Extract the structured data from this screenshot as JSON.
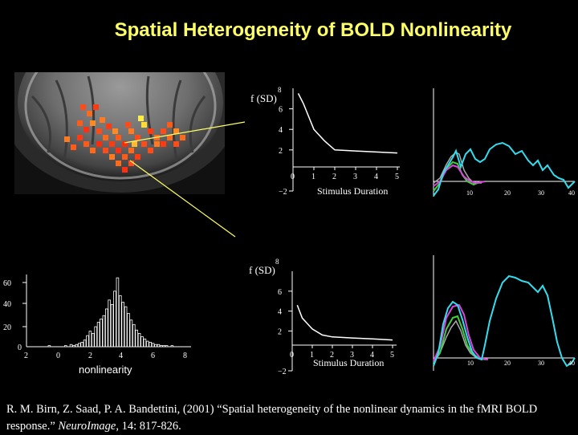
{
  "title": "Spatial Heterogeneity of BOLD Nonlinearity",
  "colors": {
    "background": "#000000",
    "title": "#ffff66",
    "nonlinearity_curve": "#ffffff",
    "pointer_line": "#ffff66",
    "trace_cyan": "#33ddee",
    "trace_magenta": "#dd44dd",
    "trace_green": "#44cc44",
    "trace_gray": "#aaaaaa"
  },
  "brain_image": {
    "description_icon": "brain-activation-map"
  },
  "top_plot": {
    "ylabel": "f (SD)",
    "ytick_top": "8",
    "yticks": [
      "6",
      "4",
      "2",
      "−2"
    ],
    "xticks": [
      "0",
      "1",
      "2",
      "3",
      "4",
      "5"
    ],
    "xlabel": "Stimulus Duration"
  },
  "bottom_plot": {
    "ylabel": "f (SD)",
    "ytick_top": "8",
    "yticks": [
      "6",
      "4",
      "2",
      "−2"
    ],
    "xticks": [
      "0",
      "1",
      "2",
      "3",
      "4",
      "5"
    ],
    "xlabel": "Stimulus Duration"
  },
  "histogram": {
    "yticks": [
      "60",
      "40",
      "20",
      "0"
    ],
    "xticks": [
      "2",
      "0",
      "2",
      "4",
      "6",
      "8"
    ],
    "xlabel": "nonlinearity"
  },
  "trace_axis_labels": [
    "10",
    "20",
    "30",
    "40"
  ],
  "citation": {
    "authors": "R. M. Birn, Z. Saad, P. A. Bandettini, (2001) “Spatial heterogeneity of the nonlinear dynamics in the fMRI BOLD response.”",
    "journal": "NeuroImage",
    "volume": ", 14:",
    "pages": "817-826."
  },
  "chart_data": [
    {
      "type": "line",
      "x": [
        0.25,
        0.5,
        1,
        1.5,
        2,
        3,
        4,
        5
      ],
      "values": [
        7.5,
        6.5,
        4.0,
        2.9,
        2.0,
        1.9,
        1.8,
        1.7
      ],
      "xlabel": "Stimulus Duration",
      "ylabel": "f (SD)",
      "ylim": [
        -2,
        8
      ]
    },
    {
      "type": "line",
      "x": [
        0.25,
        0.5,
        1,
        1.5,
        2,
        3,
        4,
        5
      ],
      "values": [
        4.6,
        3.3,
        2.2,
        1.6,
        1.4,
        1.3,
        1.2,
        1.1
      ],
      "xlabel": "Stimulus Duration",
      "ylabel": "f (SD)",
      "ylim": [
        -2,
        8
      ]
    },
    {
      "type": "bar",
      "xlabel": "nonlinearity",
      "ylim": [
        0,
        65
      ]
    }
  ]
}
